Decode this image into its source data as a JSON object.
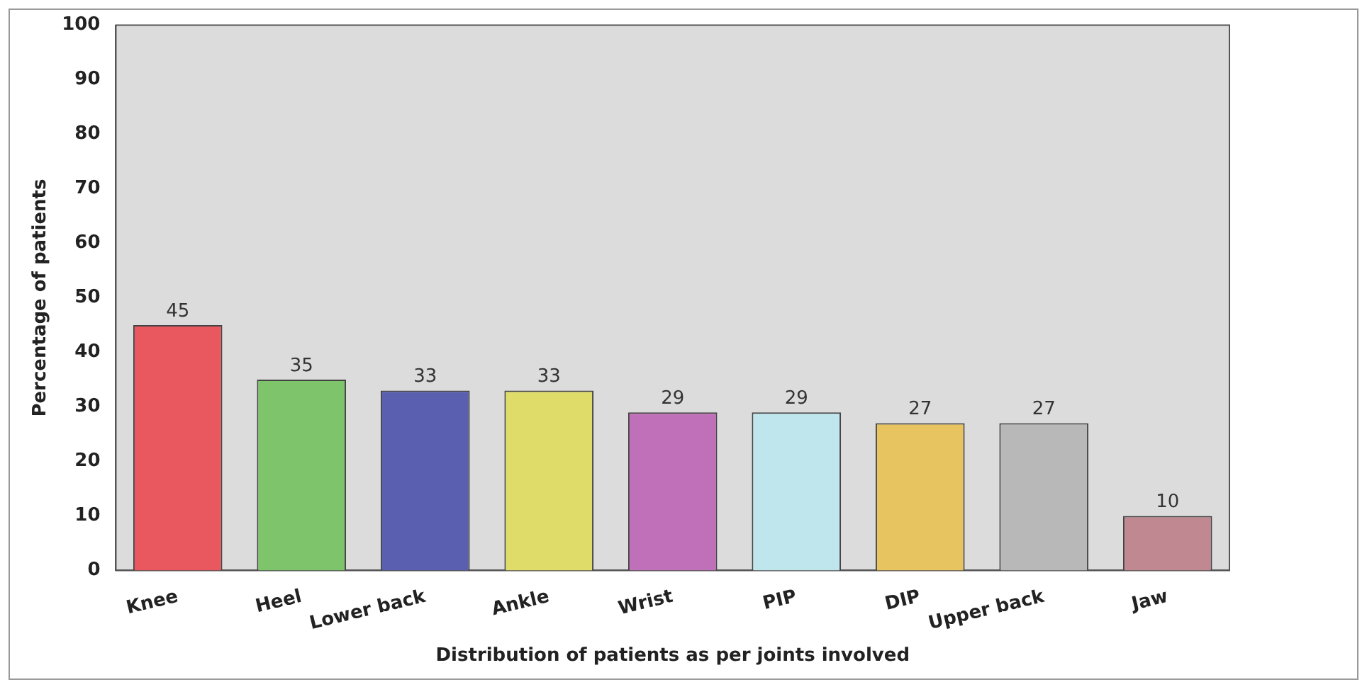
{
  "chart_data": {
    "type": "bar",
    "xlabel": "Distribution of patients as per joints involved",
    "ylabel": "Percentage of patients",
    "categories": [
      "Knee",
      "Heel",
      "Lower back",
      "Ankle",
      "Wrist",
      "PIP",
      "DIP",
      "Upper back",
      "Jaw"
    ],
    "values": [
      45,
      35,
      33,
      33,
      29,
      29,
      27,
      27,
      10
    ],
    "colors": [
      "#e8585e",
      "#7dc46a",
      "#5a5fb0",
      "#e0dc6a",
      "#c070b8",
      "#bfe6ec",
      "#e8c460",
      "#b8b8b8",
      "#c08890"
    ],
    "ylim": [
      0,
      100
    ],
    "yticks": [
      0,
      10,
      20,
      30,
      40,
      50,
      60,
      70,
      80,
      90,
      100
    ],
    "grid": false,
    "legend": false,
    "data_labels": true
  }
}
